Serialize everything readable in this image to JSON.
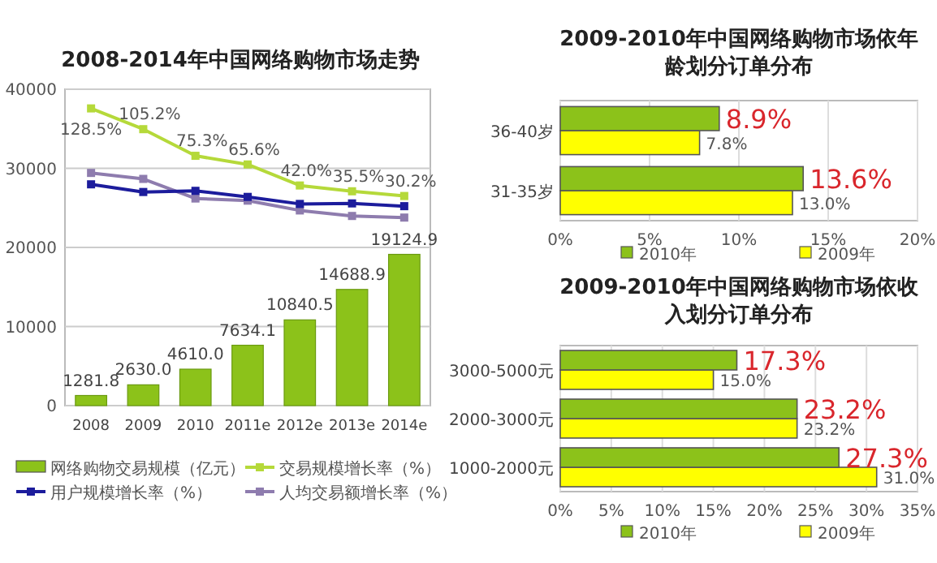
{
  "chart_data": [
    {
      "type": "bar",
      "title": "2008-2014年中国网络购物市场走势",
      "categories": [
        "2008",
        "2009",
        "2010",
        "2011e",
        "2012e",
        "2013e",
        "2014e"
      ],
      "ylim": [
        0,
        40000
      ],
      "yticks": [
        0,
        10000,
        20000,
        30000,
        40000
      ],
      "y2lim": [
        -205,
        150
      ],
      "grid": "y",
      "legend": "bottom",
      "marker": "square",
      "series": [
        {
          "name": "网络购物交易规模（亿元）",
          "type": "bar",
          "color": "#8cc21a",
          "values": [
            1281.8,
            2630.0,
            4610.0,
            7634.1,
            10840.5,
            14688.9,
            19124.9
          ],
          "value_labels": [
            "1281.8",
            "2630.0",
            "4610.0",
            "7634.1",
            "10840.5",
            "14688.9",
            "19124.9"
          ]
        },
        {
          "name": "交易规模增长率（%）",
          "type": "line",
          "axis": "y2",
          "color": "#b5d93a",
          "values": [
            128.5,
            105.2,
            75.3,
            65.6,
            42.0,
            35.5,
            30.2
          ],
          "value_labels": [
            "128.5%",
            "105.2%",
            "75.3%",
            "65.6%",
            "42.0%",
            "35.5%",
            "30.2%"
          ]
        },
        {
          "name": "用户规模增长率（%）",
          "type": "line",
          "axis": "y2",
          "color": "#1c1c9c",
          "values": [
            43.3,
            34.7,
            36.0,
            29.2,
            21.3,
            21.9,
            18.8
          ]
        },
        {
          "name": "人均交易额增长率（%）",
          "type": "line",
          "axis": "y2",
          "color": "#8e7cae",
          "values": [
            56.1,
            49.4,
            27.4,
            25.0,
            14.0,
            7.8,
            6.0
          ]
        }
      ]
    },
    {
      "type": "bar",
      "orientation": "horizontal",
      "title": "2009-2010年中国网络购物市场依年龄划分订单分布",
      "categories": [
        "36-40岁",
        "31-35岁"
      ],
      "xlim": [
        0,
        20
      ],
      "xticks": [
        {
          "value": 0,
          "label": "0%"
        },
        {
          "value": 5,
          "label": "5%"
        },
        {
          "value": 10,
          "label": "10%"
        },
        {
          "value": 15,
          "label": "15%"
        },
        {
          "value": 20,
          "label": "20%"
        }
      ],
      "grid": "x",
      "legend": "bottom",
      "series": [
        {
          "name": "2010年",
          "color": "#8cc21a",
          "values": [
            8.9,
            13.6
          ],
          "value_labels": [
            "8.9%",
            "13.6%"
          ]
        },
        {
          "name": "2009年",
          "color": "#ffff00",
          "values": [
            7.8,
            13.0
          ],
          "value_labels": [
            "7.8%",
            "13.0%"
          ]
        }
      ]
    },
    {
      "type": "bar",
      "orientation": "horizontal",
      "title": "2009-2010年中国网络购物市场依收入划分订单分布",
      "categories": [
        "3000-5000元",
        "2000-3000元",
        "1000-2000元"
      ],
      "xlim": [
        0,
        35
      ],
      "xticks": [
        {
          "value": 0,
          "label": "0%"
        },
        {
          "value": 5,
          "label": "5%"
        },
        {
          "value": 10,
          "label": "10%"
        },
        {
          "value": 15,
          "label": "15%"
        },
        {
          "value": 20,
          "label": "20%"
        },
        {
          "value": 25,
          "label": "25%"
        },
        {
          "value": 30,
          "label": "30%"
        },
        {
          "value": 35,
          "label": "35%"
        }
      ],
      "grid": "x",
      "legend": "bottom",
      "series": [
        {
          "name": "2010年",
          "color": "#8cc21a",
          "values": [
            17.3,
            23.2,
            27.3
          ],
          "value_labels": [
            "17.3%",
            "23.2%",
            "27.3%"
          ]
        },
        {
          "name": "2009年",
          "color": "#ffff00",
          "values": [
            15.0,
            23.2,
            31.0
          ],
          "value_labels": [
            "15.0%",
            "23.2%",
            "31.0%"
          ]
        }
      ]
    }
  ]
}
